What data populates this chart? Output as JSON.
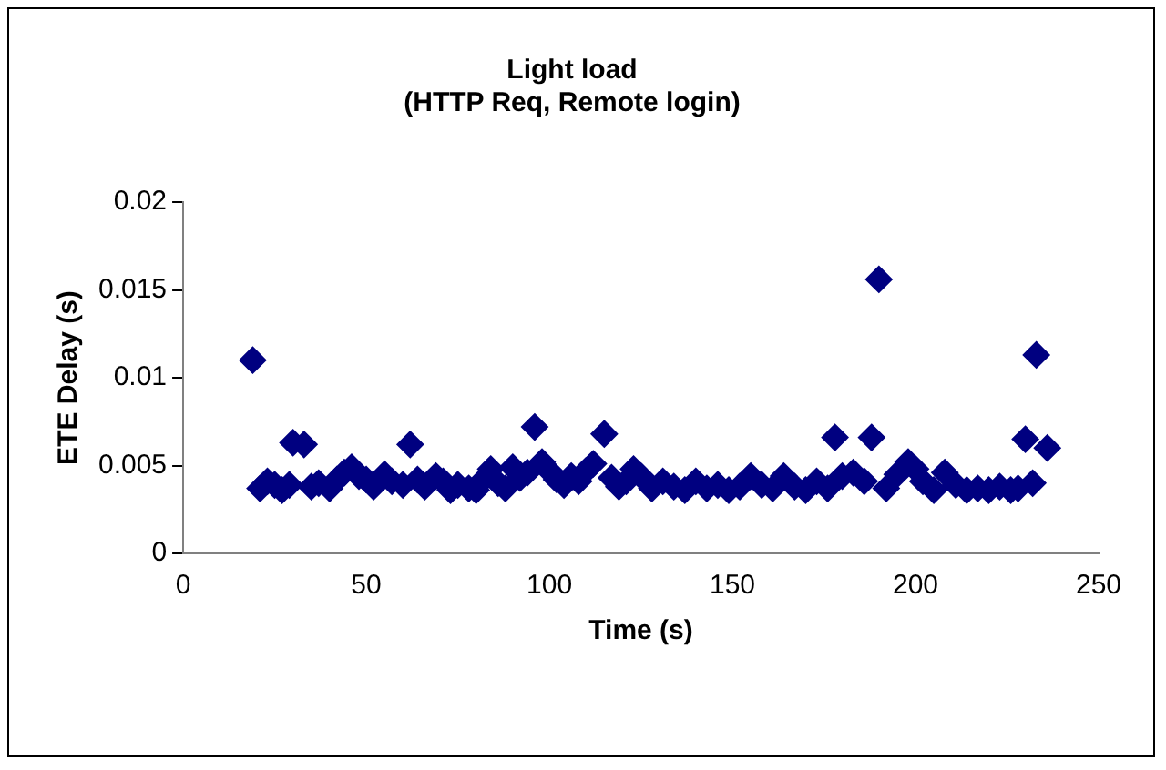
{
  "chart_data": {
    "type": "scatter",
    "title": "Light load",
    "subtitle": "(HTTP Req, Remote login)",
    "xlabel": "Time (s)",
    "ylabel": "ETE Delay (s)",
    "x": [
      19,
      21,
      23,
      25,
      27,
      29,
      30,
      33,
      35,
      37,
      40,
      42,
      44,
      46,
      48,
      50,
      52,
      55,
      57,
      60,
      62,
      64,
      66,
      69,
      71,
      73,
      75,
      78,
      80,
      82,
      84,
      86,
      88,
      90,
      92,
      94,
      96,
      98,
      100,
      102,
      104,
      106,
      108,
      110,
      112,
      115,
      117,
      119,
      121,
      123,
      125,
      128,
      131,
      134,
      137,
      140,
      143,
      146,
      149,
      152,
      155,
      158,
      161,
      164,
      167,
      170,
      173,
      176,
      178,
      180,
      183,
      186,
      188,
      190,
      192,
      195,
      198,
      200,
      202,
      205,
      208,
      211,
      214,
      217,
      220,
      223,
      226,
      228,
      230,
      232,
      233,
      236
    ],
    "values": [
      0.011,
      0.0037,
      0.0041,
      0.0039,
      0.0036,
      0.0039,
      0.0063,
      0.0062,
      0.0038,
      0.004,
      0.0037,
      0.0042,
      0.0046,
      0.0049,
      0.0044,
      0.0042,
      0.0038,
      0.0045,
      0.0041,
      0.0039,
      0.0062,
      0.0042,
      0.0038,
      0.0044,
      0.0041,
      0.0036,
      0.0039,
      0.0037,
      0.0036,
      0.0042,
      0.0048,
      0.004,
      0.0037,
      0.0049,
      0.0043,
      0.0046,
      0.0072,
      0.0052,
      0.0047,
      0.0042,
      0.0039,
      0.0044,
      0.0041,
      0.0047,
      0.0051,
      0.0068,
      0.0043,
      0.0038,
      0.0041,
      0.0048,
      0.0044,
      0.0037,
      0.0041,
      0.0038,
      0.0036,
      0.0041,
      0.0037,
      0.0039,
      0.0036,
      0.0038,
      0.0044,
      0.0039,
      0.0037,
      0.0044,
      0.0038,
      0.0036,
      0.0041,
      0.0037,
      0.0066,
      0.0044,
      0.0046,
      0.0041,
      0.0066,
      0.0156,
      0.0037,
      0.0045,
      0.0052,
      0.0048,
      0.0041,
      0.0036,
      0.0046,
      0.0039,
      0.0036,
      0.0037,
      0.0036,
      0.0038,
      0.0036,
      0.0037,
      0.0065,
      0.004,
      0.0113,
      0.006
    ],
    "color": "#000080",
    "marker": "diamond",
    "xlim": [
      0,
      250
    ],
    "xticks": [
      0,
      50,
      100,
      150,
      200,
      250
    ],
    "ylim": [
      0,
      0.02
    ],
    "yticks": [
      0,
      0.005,
      0.01,
      0.015,
      0.02
    ],
    "grid": false,
    "legend": false
  }
}
